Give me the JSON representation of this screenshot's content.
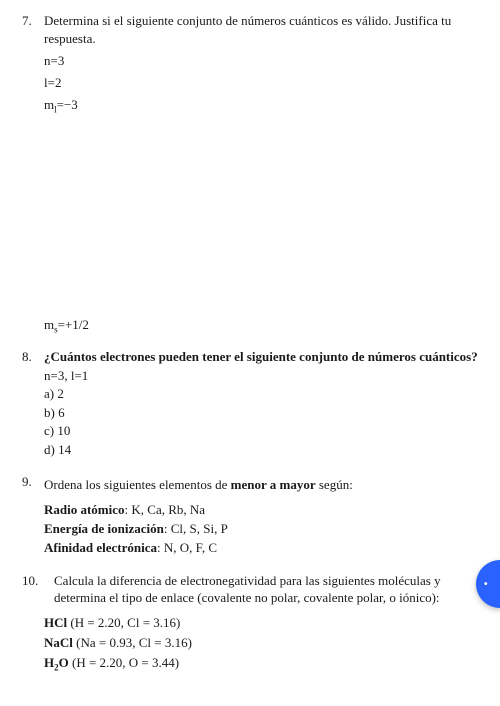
{
  "q7": {
    "num": "7.",
    "text": "Determina si el siguiente conjunto de números cuánticos es válido. Justifica tu respuesta.",
    "p1": "n=3",
    "p2": "l=2",
    "p3_left": "m",
    "p3_sub": "l",
    "p3_right": "=−3",
    "p4_left": "m",
    "p4_sub": "s",
    "p4_right": "=+1/2"
  },
  "q8": {
    "num": "8.",
    "text": "¿Cuántos electrones pueden tener el siguiente conjunto de números cuánticos?",
    "given": "n=3, l=1",
    "a": "a) 2",
    "b": "b) 6",
    "c": "c) 10",
    "d": "d) 14"
  },
  "q9": {
    "num": "9.",
    "text_1": "Ordena los siguientes elementos de ",
    "text_b": "menor a mayor",
    "text_2": " según:",
    "r1_b": "Radio atómico",
    "r1_t": ": K, Ca, Rb, Na",
    "r2_b": "Energía de ionización",
    "r2_t": ": Cl, S, Si, P",
    "r3_b": "Afinidad electrónica",
    "r3_t": ": N, O, F, C"
  },
  "q10": {
    "num": "10.",
    "text": "Calcula la diferencia de electronegatividad para las siguientes moléculas y determina el tipo de enlace (covalente no polar, covalente polar, o iónico):",
    "m1_b": "HCl",
    "m1_t": " (H = 2.20, Cl = 3.16)",
    "m2_b": "NaCl",
    "m2_t": " (Na = 0.93, Cl = 3.16)",
    "m3_pre": "H",
    "m3_sub": "2",
    "m3_post": "O",
    "m3_t": " (H = 2.20, O = 3.44)"
  }
}
